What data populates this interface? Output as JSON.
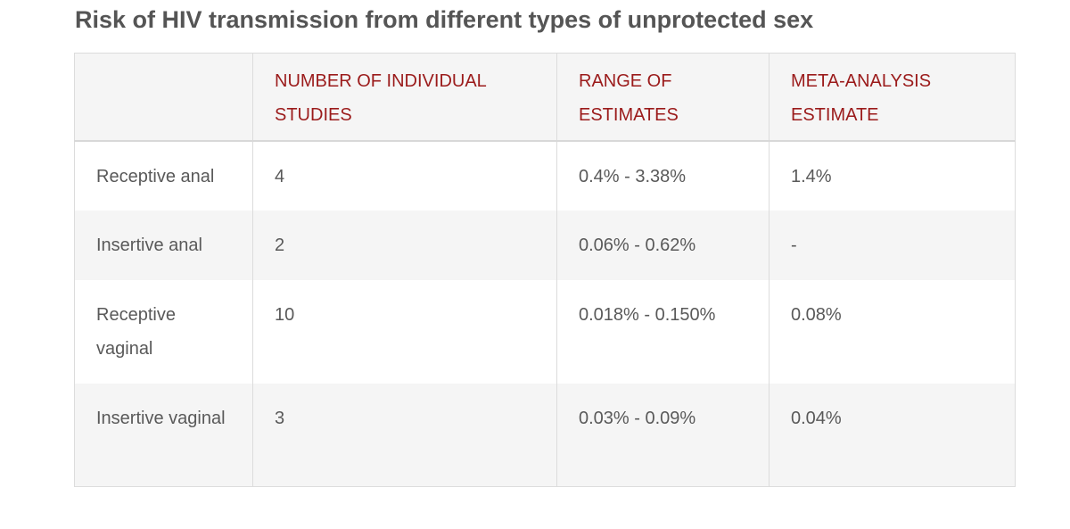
{
  "title": "Risk of HIV transmission from different types of unprotected sex",
  "table": {
    "headers": [
      "",
      "NUMBER OF INDIVIDUAL STUDIES",
      "RANGE OF ESTIMATES",
      "META-ANALYSIS ESTIMATE"
    ],
    "rows": [
      {
        "type": "Receptive anal",
        "studies": "4",
        "range": "0.4% - 3.38%",
        "estimate": "1.4%"
      },
      {
        "type": "Insertive anal",
        "studies": "2",
        "range": "0.06% - 0.62%",
        "estimate": "-"
      },
      {
        "type": "Receptive vaginal",
        "studies": "10",
        "range": "0.018% - 0.150%",
        "estimate": "0.08%"
      },
      {
        "type": "Insertive vaginal",
        "studies": "3",
        "range": "0.03% - 0.09%",
        "estimate": "0.04%"
      }
    ]
  },
  "colors": {
    "title": "#555555",
    "header_text": "#9b1b1b",
    "body_text": "#595959",
    "stripe": "#f5f5f5",
    "border": "#dcdcdc"
  }
}
